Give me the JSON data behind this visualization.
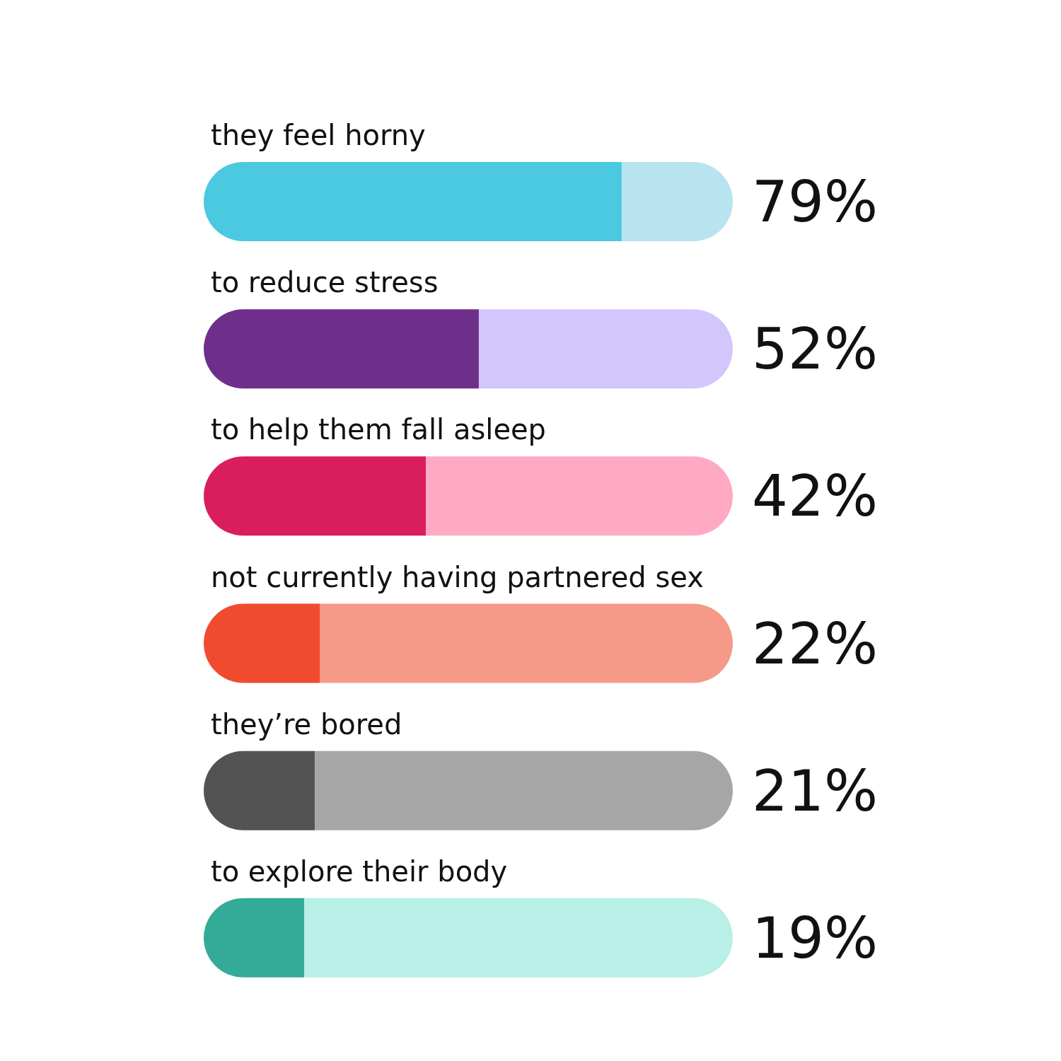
{
  "chart_data": {
    "type": "bar",
    "orientation": "horizontal",
    "stacked": true,
    "categories": [
      "they feel horny",
      "to reduce stress",
      "to help them fall asleep",
      "not currently having partnered sex",
      "they’re bored",
      "to explore their body"
    ],
    "series": [
      {
        "colors": [
          "#4ac9e1",
          "#6f2e8a",
          "#d91d5d",
          "#f04b2f",
          "#535353",
          "#34aa98"
        ],
        "values": [
          79,
          52,
          42,
          22,
          21,
          19
        ],
        "value_labels": [
          "79%",
          "52%",
          "42%",
          "22%",
          "21%",
          "19%"
        ]
      },
      {
        "colors": [
          "#b8e4f0",
          "#d3c6fc",
          "#ffa9c3",
          "#f59a89",
          "#a6a6a6",
          "#b8efe6"
        ],
        "values": [
          21,
          48,
          58,
          78,
          79,
          81
        ]
      }
    ],
    "xlim": [
      0,
      100
    ],
    "tick_labels": "y"
  }
}
